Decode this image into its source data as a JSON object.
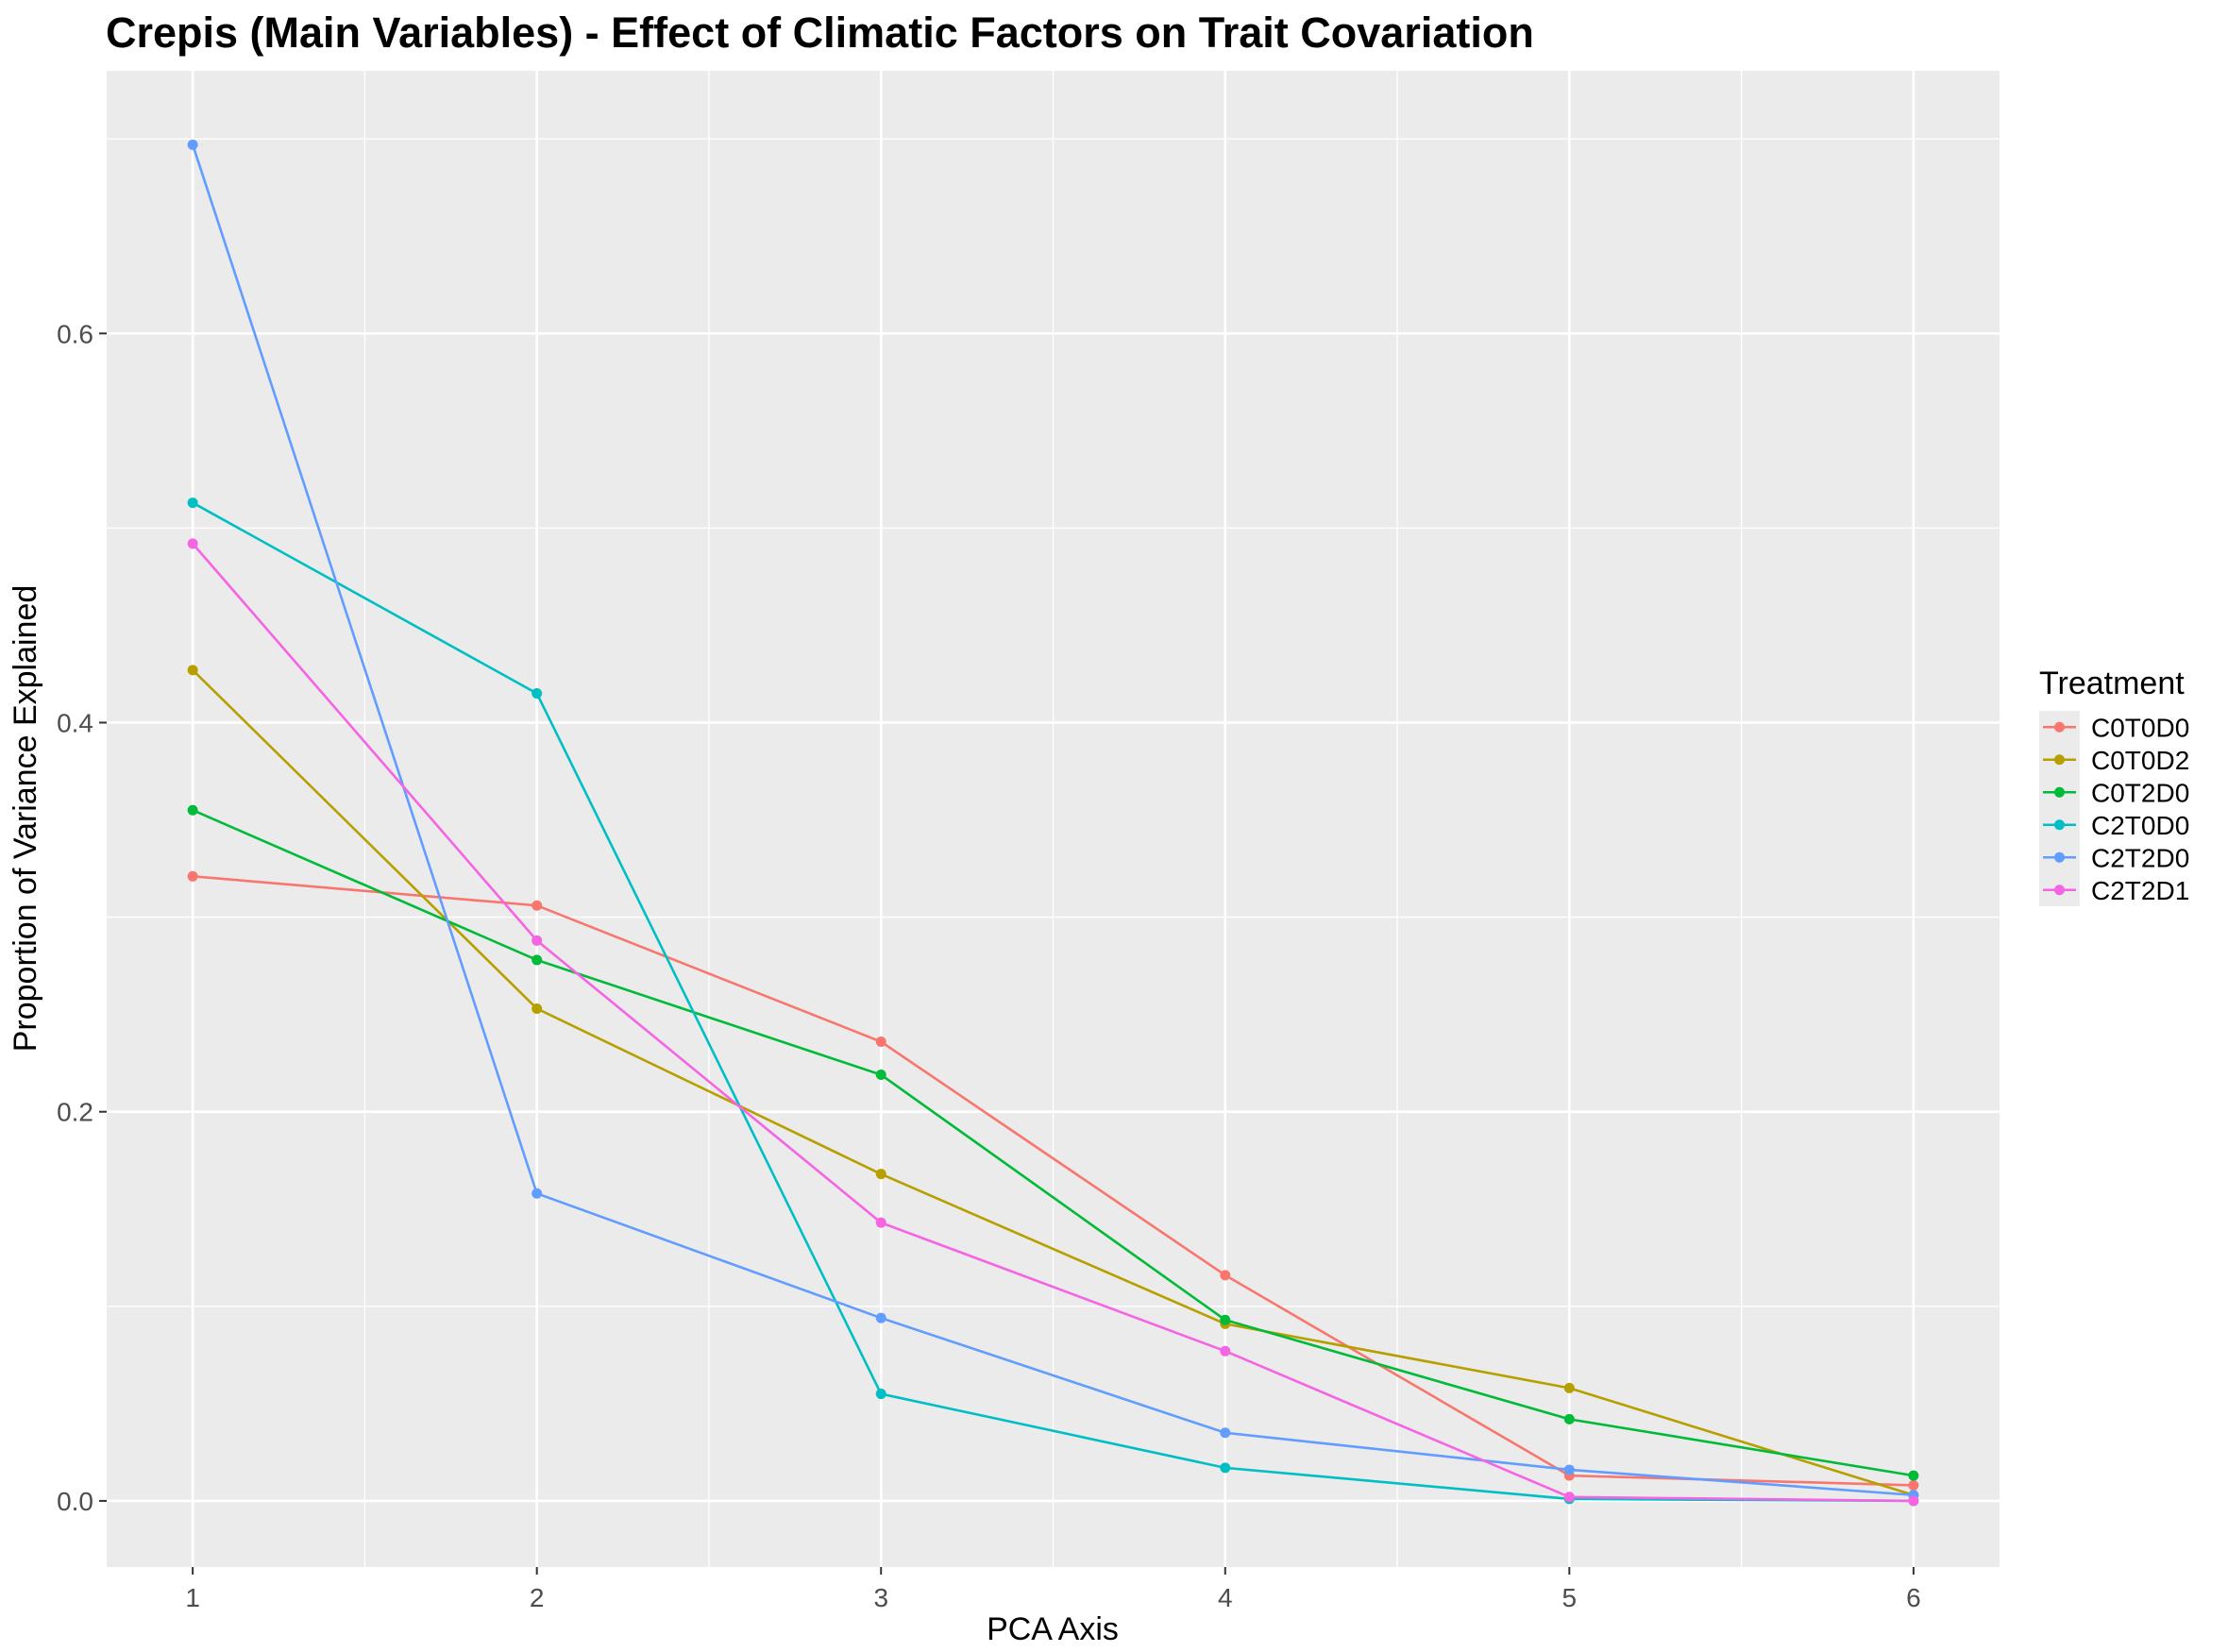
{
  "chart_data": {
    "type": "line",
    "title": "Crepis (Main Variables) - Effect of Climatic Factors on Trait Covariation",
    "xlabel": "PCA Axis",
    "ylabel": "Proportion of Variance Explained",
    "x": [
      1,
      2,
      3,
      4,
      5,
      6
    ],
    "xlim": [
      0.75,
      6.25
    ],
    "ylim": [
      -0.034,
      0.735
    ],
    "x_ticks": [
      1,
      2,
      3,
      4,
      5,
      6
    ],
    "y_ticks": [
      0.0,
      0.2,
      0.4,
      0.6
    ],
    "y_tick_labels": [
      "0.0",
      "0.2",
      "0.4",
      "0.6"
    ],
    "grid": true,
    "legend": {
      "title": "Treatment",
      "position": "right"
    },
    "series": [
      {
        "name": "C0T0D0",
        "color": "#F8766D",
        "values": [
          0.321,
          0.306,
          0.236,
          0.116,
          0.013,
          0.008
        ]
      },
      {
        "name": "C0T0D2",
        "color": "#B79F00",
        "values": [
          0.427,
          0.253,
          0.168,
          0.091,
          0.058,
          0.003
        ]
      },
      {
        "name": "C0T2D0",
        "color": "#00BA38",
        "values": [
          0.355,
          0.278,
          0.219,
          0.093,
          0.042,
          0.013
        ]
      },
      {
        "name": "C2T0D0",
        "color": "#00BFC4",
        "values": [
          0.513,
          0.415,
          0.055,
          0.017,
          0.001,
          0.0
        ]
      },
      {
        "name": "C2T2D0",
        "color": "#619CFF",
        "values": [
          0.697,
          0.158,
          0.094,
          0.035,
          0.016,
          0.003
        ]
      },
      {
        "name": "C2T2D1",
        "color": "#F564E3",
        "values": [
          0.492,
          0.288,
          0.143,
          0.077,
          0.002,
          0.0
        ]
      }
    ]
  }
}
